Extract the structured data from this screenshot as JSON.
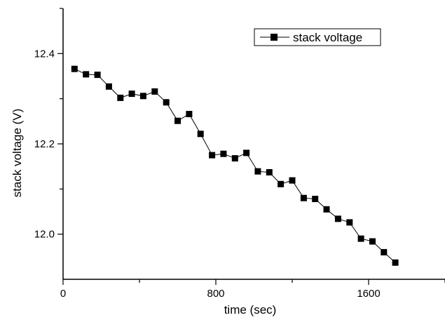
{
  "chart_data": {
    "type": "line",
    "xlabel": "time (sec)",
    "ylabel": "stack voltage (V)",
    "xlim": [
      0,
      2000
    ],
    "ylim": [
      11.9,
      12.5
    ],
    "x_ticks": [
      0,
      800,
      1600
    ],
    "y_ticks": [
      12.0,
      12.2,
      12.4
    ],
    "y_tick_labels": [
      "12.0",
      "12.2",
      "12.4"
    ],
    "grid": false,
    "legend": "top-right",
    "marker": "square",
    "color": "#000000",
    "series": [
      {
        "name": "stack voltage",
        "x": [
          60,
          120,
          180,
          240,
          300,
          360,
          420,
          480,
          540,
          600,
          660,
          720,
          780,
          840,
          900,
          960,
          1020,
          1080,
          1140,
          1200,
          1260,
          1320,
          1380,
          1440,
          1500,
          1560,
          1620,
          1680,
          1740
        ],
        "y": [
          12.366,
          12.354,
          12.353,
          12.327,
          12.302,
          12.311,
          12.306,
          12.316,
          12.292,
          12.251,
          12.266,
          12.222,
          12.175,
          12.178,
          12.168,
          12.18,
          12.139,
          12.137,
          12.111,
          12.119,
          12.08,
          12.078,
          12.055,
          12.034,
          12.026,
          11.99,
          11.984,
          11.96,
          11.937
        ]
      }
    ]
  }
}
